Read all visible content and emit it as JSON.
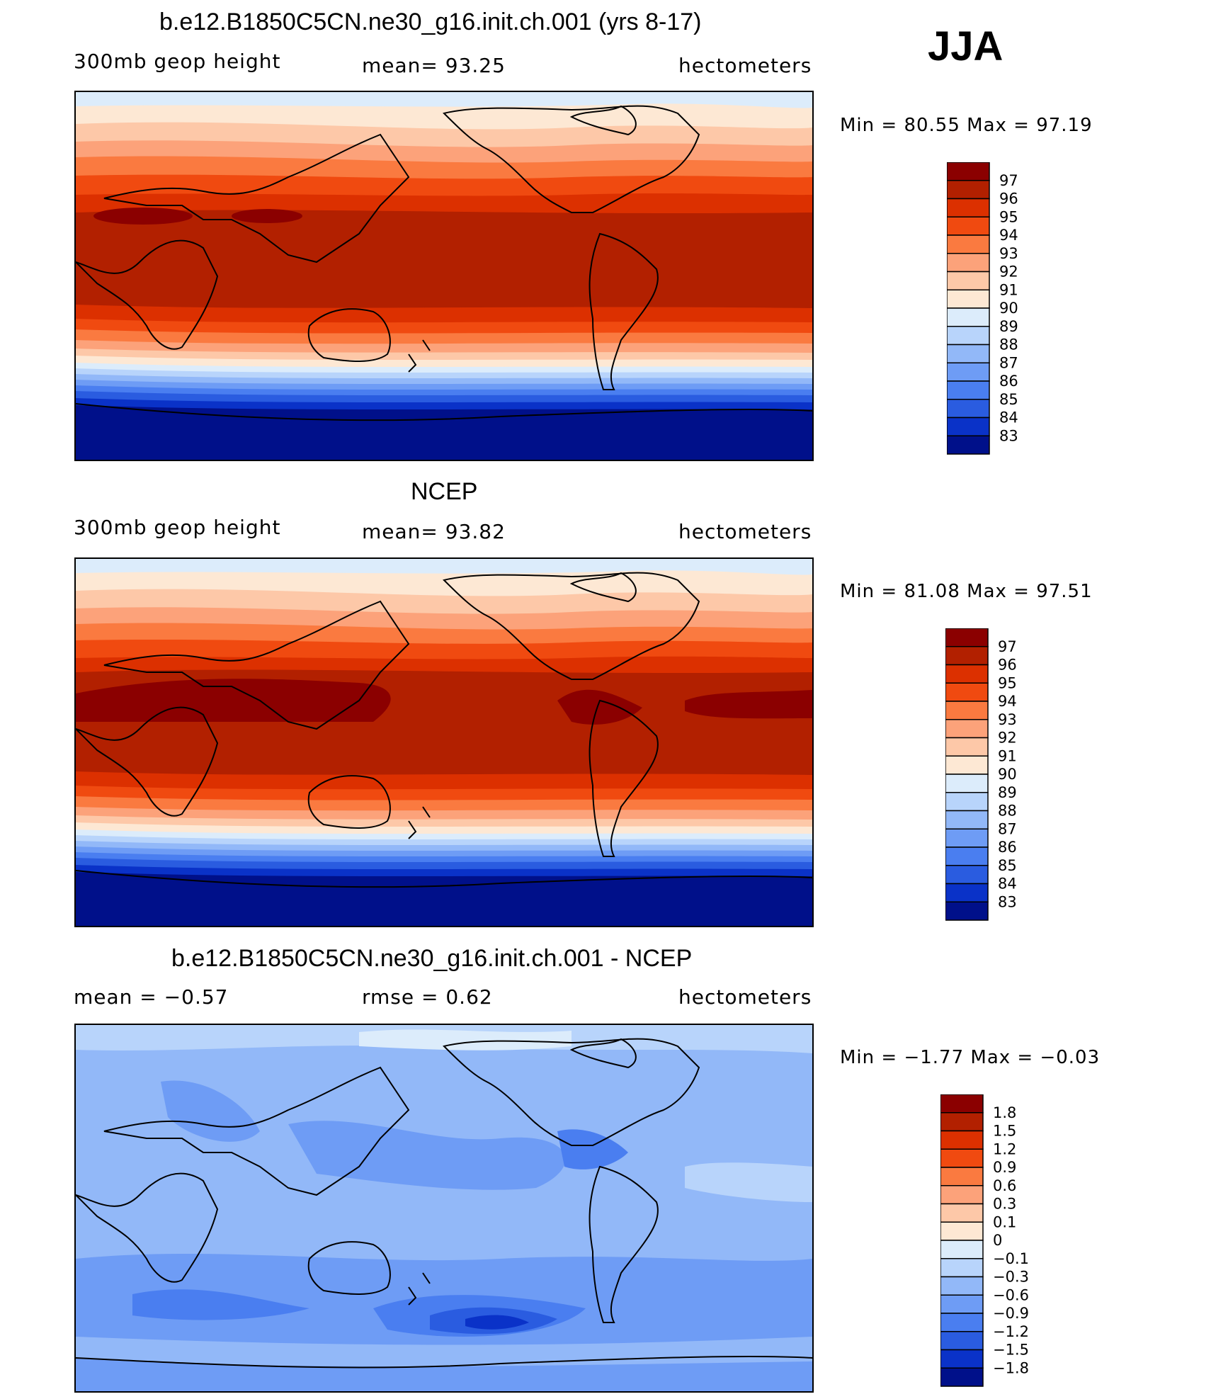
{
  "season": "JJA",
  "panels": [
    {
      "title": "b.e12.B1850C5CN.ne30_g16.init.ch.001 (yrs 8-17)",
      "variable": "300mb geop height",
      "stat": "mean=   93.25",
      "units": "hectometers",
      "minmax": "Min =   80.55 Max =   97.19",
      "levels": [
        "97",
        "96",
        "95",
        "94",
        "93",
        "92",
        "91",
        "90",
        "89",
        "88",
        "87",
        "86",
        "85",
        "84",
        "83"
      ]
    },
    {
      "title": "NCEP",
      "variable": "300mb geop height",
      "stat": "mean=   93.82",
      "units": "hectometers",
      "minmax": "Min =   81.08 Max =   97.51",
      "levels": [
        "97",
        "96",
        "95",
        "94",
        "93",
        "92",
        "91",
        "90",
        "89",
        "88",
        "87",
        "86",
        "85",
        "84",
        "83"
      ]
    },
    {
      "title": "b.e12.B1850C5CN.ne30_g16.init.ch.001 - NCEP",
      "variable": "mean =   −0.57",
      "stat": "rmse =    0.62",
      "units": "hectometers",
      "minmax": "Min =   −1.77 Max =   −0.03",
      "levels": [
        "1.8",
        "1.5",
        "1.2",
        "0.9",
        "0.6",
        "0.3",
        "0.1",
        "0",
        "−0.1",
        "−0.3",
        "−0.6",
        "−0.9",
        "−1.2",
        "−1.5",
        "−1.8"
      ]
    }
  ],
  "colors": {
    "ramp16": [
      "#8b0000",
      "#b22000",
      "#dc3000",
      "#f04a10",
      "#fa7a40",
      "#fca27a",
      "#fdc8a8",
      "#fde8d4",
      "#dcecfb",
      "#b8d4fb",
      "#92b8f8",
      "#6e9cf5",
      "#4a7ef0",
      "#2a5ce0",
      "#0a32c8",
      "#00108a"
    ],
    "coast": "#000000"
  }
}
